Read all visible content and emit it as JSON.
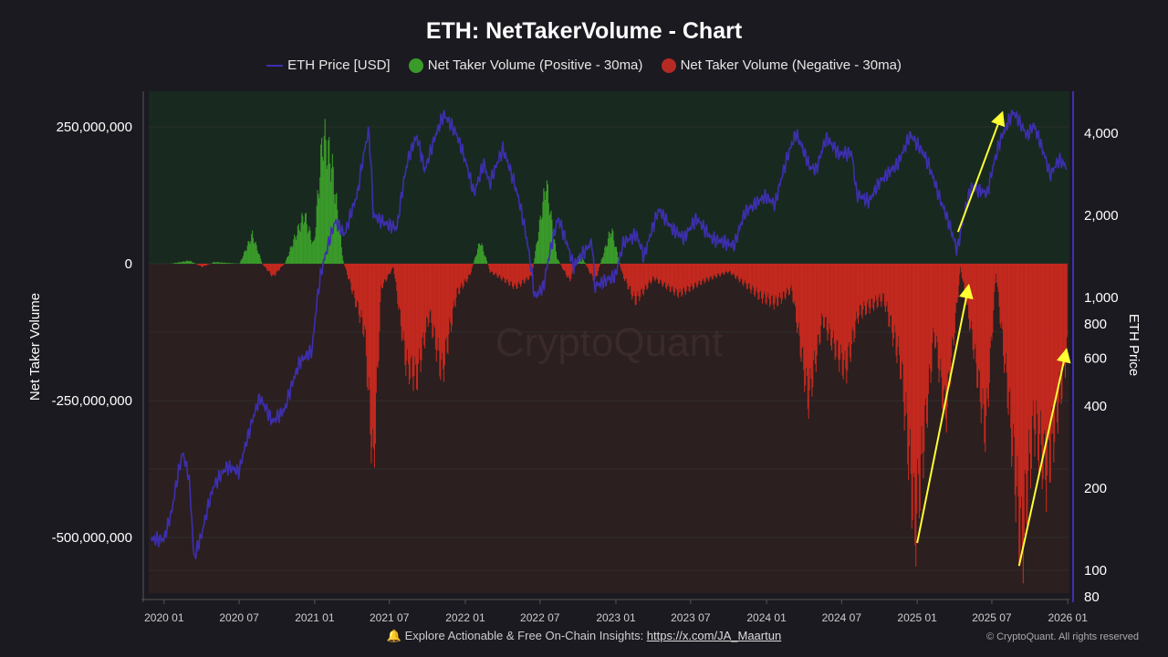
{
  "chart_data": {
    "type": "bar+line",
    "title": "ETH: NetTakerVolume - Chart",
    "legend": [
      {
        "name": "ETH Price [USD]",
        "color": "#3d2fae",
        "kind": "line"
      },
      {
        "name": "Net Taker Volume (Positive - 30ma)",
        "color": "#3a9a2a",
        "kind": "dot"
      },
      {
        "name": "Net Taker Volume (Negative - 30ma)",
        "color": "#b52a24",
        "kind": "dot"
      }
    ],
    "legend_position": "top",
    "ylabel_left": "Net Taker Volume",
    "ylabel_right": "ETH Price",
    "y_left_ticks": [
      "250,000,000",
      "0",
      "-250,000,000",
      "-500,000,000"
    ],
    "y_left_tick_values": [
      250000000,
      0,
      -250000000,
      -500000000
    ],
    "y_left_range": [
      -560000000,
      310000000
    ],
    "y_right_scale": "log",
    "y_right_ticks": [
      "4,000",
      "2,000",
      "1,000",
      "800",
      "600",
      "400",
      "200",
      "100",
      "80"
    ],
    "y_right_tick_values": [
      4000,
      2000,
      1000,
      800,
      600,
      400,
      200,
      100,
      80
    ],
    "x_ticks": [
      "2020 01",
      "2020 07",
      "2021 01",
      "2021 07",
      "2022 01",
      "2022 07",
      "2023 01",
      "2023 07",
      "2024 01",
      "2024 07",
      "2025 01",
      "2025 07",
      "2026 01"
    ],
    "x_range": [
      "2019-11-25",
      "2026-01-05"
    ],
    "grid": true,
    "watermark": "CryptoQuant",
    "price_series": [
      [
        "2019-12-01",
        130
      ],
      [
        "2020-01-01",
        130
      ],
      [
        "2020-01-20",
        165
      ],
      [
        "2020-02-15",
        270
      ],
      [
        "2020-03-01",
        220
      ],
      [
        "2020-03-13",
        110
      ],
      [
        "2020-04-01",
        135
      ],
      [
        "2020-05-01",
        205
      ],
      [
        "2020-06-01",
        240
      ],
      [
        "2020-07-01",
        230
      ],
      [
        "2020-07-25",
        320
      ],
      [
        "2020-08-20",
        430
      ],
      [
        "2020-09-20",
        350
      ],
      [
        "2020-10-20",
        390
      ],
      [
        "2020-11-25",
        580
      ],
      [
        "2020-12-25",
        640
      ],
      [
        "2021-01-15",
        1200
      ],
      [
        "2021-02-20",
        1900
      ],
      [
        "2021-03-15",
        1700
      ],
      [
        "2021-04-15",
        2400
      ],
      [
        "2021-05-12",
        4100
      ],
      [
        "2021-05-23",
        2000
      ],
      [
        "2021-06-25",
        1850
      ],
      [
        "2021-07-20",
        1800
      ],
      [
        "2021-08-15",
        3200
      ],
      [
        "2021-09-05",
        3900
      ],
      [
        "2021-09-25",
        2900
      ],
      [
        "2021-11-10",
        4700
      ],
      [
        "2021-12-10",
        4000
      ],
      [
        "2022-01-22",
        2400
      ],
      [
        "2022-02-15",
        3100
      ],
      [
        "2022-03-01",
        2600
      ],
      [
        "2022-04-02",
        3500
      ],
      [
        "2022-05-10",
        2300
      ],
      [
        "2022-06-18",
        1000
      ],
      [
        "2022-07-10",
        1100
      ],
      [
        "2022-08-14",
        1950
      ],
      [
        "2022-09-20",
        1300
      ],
      [
        "2022-11-05",
        1600
      ],
      [
        "2022-11-10",
        1100
      ],
      [
        "2022-12-31",
        1200
      ],
      [
        "2023-01-20",
        1600
      ],
      [
        "2023-02-20",
        1700
      ],
      [
        "2023-03-10",
        1400
      ],
      [
        "2023-04-15",
        2100
      ],
      [
        "2023-05-15",
        1800
      ],
      [
        "2023-06-15",
        1650
      ],
      [
        "2023-07-15",
        1950
      ],
      [
        "2023-08-20",
        1650
      ],
      [
        "2023-10-15",
        1550
      ],
      [
        "2023-11-10",
        2050
      ],
      [
        "2023-12-28",
        2350
      ],
      [
        "2024-01-22",
        2200
      ],
      [
        "2024-03-12",
        4000
      ],
      [
        "2024-04-15",
        3000
      ],
      [
        "2024-05-01",
        2950
      ],
      [
        "2024-05-25",
        3850
      ],
      [
        "2024-06-25",
        3350
      ],
      [
        "2024-07-25",
        3400
      ],
      [
        "2024-08-06",
        2400
      ],
      [
        "2024-09-06",
        2250
      ],
      [
        "2024-10-01",
        2650
      ],
      [
        "2024-11-15",
        3100
      ],
      [
        "2024-12-15",
        3950
      ],
      [
        "2025-01-20",
        3300
      ],
      [
        "2025-02-25",
        2300
      ],
      [
        "2025-04-08",
        1480
      ],
      [
        "2025-05-12",
        2550
      ],
      [
        "2025-06-20",
        2400
      ],
      [
        "2025-07-20",
        3700
      ],
      [
        "2025-08-22",
        4800
      ],
      [
        "2025-09-25",
        3900
      ],
      [
        "2025-10-10",
        4300
      ],
      [
        "2025-11-20",
        2800
      ],
      [
        "2025-12-10",
        3200
      ],
      [
        "2025-12-31",
        3000
      ]
    ],
    "net_taker_volume_series": [
      [
        "2019-12-01",
        0
      ],
      [
        "2020-01-15",
        0
      ],
      [
        "2020-03-01",
        6
      ],
      [
        "2020-04-01",
        -6
      ],
      [
        "2020-05-01",
        3
      ],
      [
        "2020-07-01",
        0
      ],
      [
        "2020-08-01",
        48
      ],
      [
        "2020-08-25",
        0
      ],
      [
        "2020-09-20",
        -22
      ],
      [
        "2020-10-20",
        2
      ],
      [
        "2020-12-05",
        95
      ],
      [
        "2020-12-28",
        35
      ],
      [
        "2021-01-20",
        258
      ],
      [
        "2021-02-10",
        200
      ],
      [
        "2021-03-10",
        5
      ],
      [
        "2021-04-05",
        -60
      ],
      [
        "2021-05-01",
        -120
      ],
      [
        "2021-05-22",
        -355
      ],
      [
        "2021-06-10",
        -40
      ],
      [
        "2021-07-10",
        -5
      ],
      [
        "2021-08-10",
        -170
      ],
      [
        "2021-09-05",
        -195
      ],
      [
        "2021-10-05",
        -90
      ],
      [
        "2021-11-05",
        -210
      ],
      [
        "2021-12-10",
        -60
      ],
      [
        "2022-01-10",
        -25
      ],
      [
        "2022-02-05",
        45
      ],
      [
        "2022-03-01",
        -15
      ],
      [
        "2022-05-01",
        -40
      ],
      [
        "2022-06-10",
        -20
      ],
      [
        "2022-07-15",
        135
      ],
      [
        "2022-08-10",
        10
      ],
      [
        "2022-09-10",
        -30
      ],
      [
        "2022-10-05",
        20
      ],
      [
        "2022-11-10",
        -35
      ],
      [
        "2022-12-20",
        70
      ],
      [
        "2023-01-15",
        -20
      ],
      [
        "2023-02-15",
        -70
      ],
      [
        "2023-04-01",
        -25
      ],
      [
        "2023-06-01",
        -50
      ],
      [
        "2023-08-01",
        -30
      ],
      [
        "2023-10-01",
        -15
      ],
      [
        "2023-12-15",
        -65
      ],
      [
        "2024-01-20",
        -75
      ],
      [
        "2024-03-01",
        -45
      ],
      [
        "2024-04-10",
        -230
      ],
      [
        "2024-05-15",
        -90
      ],
      [
        "2024-07-10",
        -185
      ],
      [
        "2024-08-10",
        -90
      ],
      [
        "2024-10-10",
        -70
      ],
      [
        "2024-11-20",
        -200
      ],
      [
        "2024-12-25",
        -510
      ],
      [
        "2025-02-10",
        -120
      ],
      [
        "2025-03-10",
        -260
      ],
      [
        "2025-04-15",
        -5
      ],
      [
        "2025-05-15",
        -130
      ],
      [
        "2025-06-15",
        -290
      ],
      [
        "2025-07-10",
        -15
      ],
      [
        "2025-08-10",
        -260
      ],
      [
        "2025-09-10",
        -565
      ],
      [
        "2025-10-10",
        -320
      ],
      [
        "2025-11-10",
        -420
      ],
      [
        "2025-12-31",
        -150
      ]
    ],
    "volume_unit": "millions",
    "annotations": [
      {
        "type": "arrow",
        "color": "#ffff33",
        "from": [
          "2025-01-01",
          -510000000
        ],
        "to": [
          "2025-05-05",
          -43000000
        ]
      },
      {
        "type": "arrow",
        "color": "#ffff33",
        "from": [
          "2025-04-10",
          58000000
        ],
        "to": [
          "2025-07-25",
          273000000
        ]
      },
      {
        "type": "arrow",
        "color": "#ffff33",
        "from": [
          "2025-09-05",
          -552000000
        ],
        "to": [
          "2025-12-28",
          -160000000
        ]
      }
    ]
  },
  "footer": {
    "text": "Explore Actionable & Free On-Chain Insights: ",
    "link": "https://x.com/JA_Maartun",
    "icon": "bell-icon",
    "copyright": "© CryptoQuant. All rights reserved"
  }
}
